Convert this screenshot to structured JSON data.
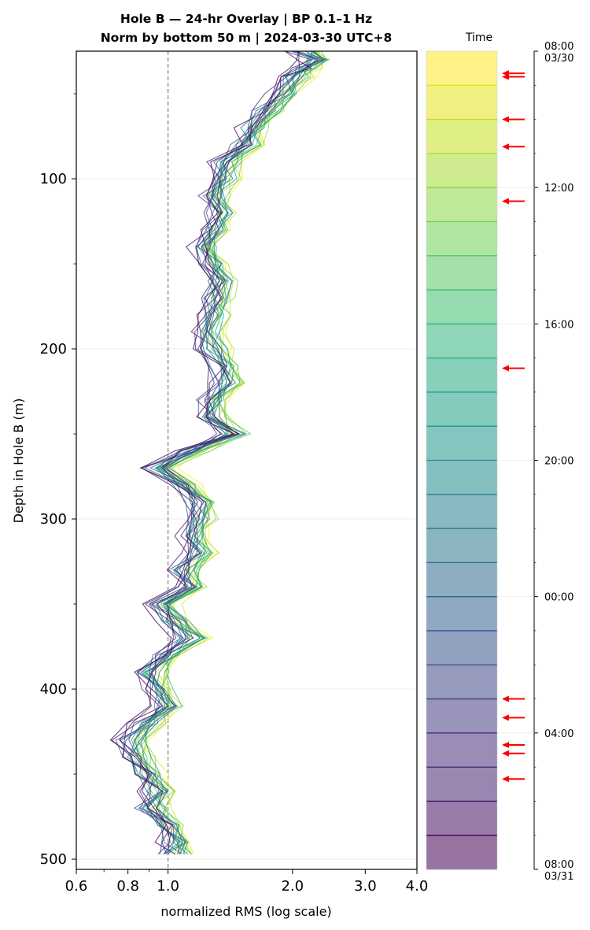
{
  "chart_data": {
    "type": "line",
    "title_lines": [
      "Hole B — 24-hr Overlay  |  BP 0.1–1 Hz",
      "Norm by bottom 50 m  |  2024-03-30 UTC+8"
    ],
    "xlabel": "normalized RMS  (log scale)",
    "ylabel": "Depth in Hole B (m)",
    "x_scale": "log",
    "xlim": [
      0.6,
      4.0
    ],
    "ylim": [
      506,
      25
    ],
    "y_inverted": true,
    "x_ticks": [
      "0.6",
      "0.8",
      "1.0",
      "2.0",
      "3.0",
      "4.0"
    ],
    "x_tick_values": [
      0.6,
      0.8,
      1.0,
      2.0,
      3.0,
      4.0
    ],
    "y_ticks": [
      "100",
      "200",
      "300",
      "400",
      "500"
    ],
    "y_tick_values": [
      100,
      200,
      300,
      400,
      500
    ],
    "reference_line": {
      "x": 1.0,
      "style": "dashed",
      "color": "#808080"
    },
    "grid": "horizontal major",
    "colormap": "viridis (reversed in time: yellow = 08:00 03/30, purple = 08:00 03/31)",
    "depth_grid": [
      25,
      30,
      35,
      40,
      50,
      60,
      70,
      80,
      90,
      100,
      110,
      120,
      130,
      140,
      150,
      160,
      170,
      180,
      190,
      200,
      210,
      220,
      230,
      240,
      250,
      260,
      270,
      280,
      290,
      300,
      310,
      320,
      330,
      340,
      350,
      360,
      370,
      380,
      390,
      400,
      410,
      420,
      430,
      440,
      450,
      460,
      470,
      480,
      490,
      497
    ],
    "series_hours": [
      "08:00",
      "08:30",
      "09:30",
      "10:30",
      "11:30",
      "12:30",
      "13:30",
      "14:30",
      "15:30",
      "16:30",
      "17:30",
      "18:30",
      "19:30",
      "20:30",
      "21:30",
      "22:30",
      "23:30",
      "00:30",
      "01:30",
      "02:30",
      "03:30",
      "04:30",
      "05:30",
      "06:30",
      "07:30"
    ],
    "median_profile": [
      2.15,
      2.3,
      2.2,
      2.05,
      1.9,
      1.75,
      1.6,
      1.55,
      1.4,
      1.38,
      1.3,
      1.35,
      1.3,
      1.25,
      1.3,
      1.35,
      1.32,
      1.3,
      1.25,
      1.3,
      1.35,
      1.4,
      1.3,
      1.28,
      1.45,
      1.15,
      0.95,
      1.1,
      1.2,
      1.2,
      1.15,
      1.2,
      1.1,
      1.15,
      0.98,
      1.05,
      1.15,
      1.0,
      0.92,
      0.95,
      1.0,
      0.9,
      0.82,
      0.85,
      0.9,
      0.95,
      0.92,
      1.0,
      1.05,
      1.05
    ],
    "colorbar": {
      "title": "Time",
      "ticks": [
        "08:00\n03/30",
        "12:00",
        "16:00",
        "20:00",
        "00:00",
        "04:00",
        "08:00\n03/31"
      ],
      "tick_hours": [
        0,
        4,
        8,
        12,
        16,
        20,
        24
      ],
      "bands": 24,
      "colors": [
        "#fde725",
        "#dde318",
        "#bade28",
        "#95d840",
        "#75d054",
        "#56c667",
        "#3dbc74",
        "#29af7f",
        "#20a386",
        "#1f968b",
        "#238a8d",
        "#287d8e",
        "#2d718e",
        "#33638d",
        "#39558c",
        "#404688",
        "#453781",
        "#482677",
        "#481467",
        "#440154"
      ]
    },
    "arrows_hours": [
      0.65,
      0.75,
      2.0,
      2.8,
      4.4,
      9.3,
      19.0,
      19.55,
      20.35,
      20.6,
      21.35
    ],
    "arrow_color": "#ff0000"
  }
}
